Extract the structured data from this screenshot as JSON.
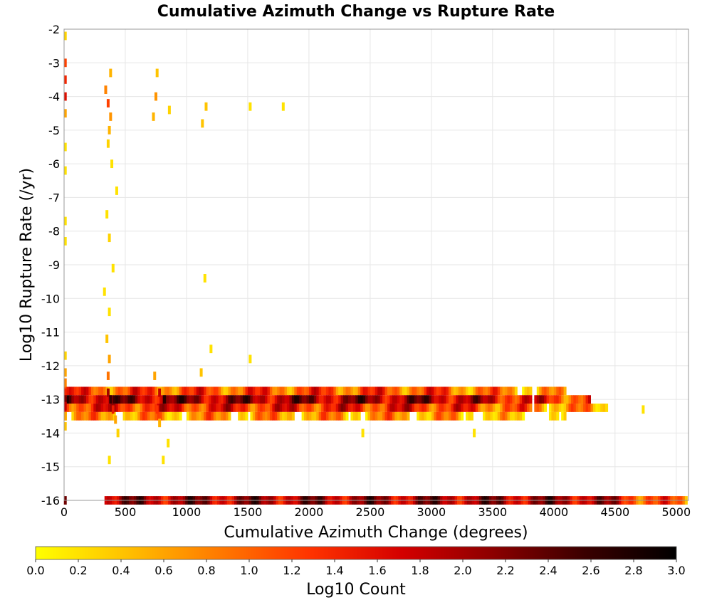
{
  "chart_data": {
    "type": "heatmap",
    "title": "Cumulative Azimuth Change vs Rupture Rate",
    "xlabel": "Cumulative Azimuth Change (degrees)",
    "ylabel": "Log10 Rupture Rate (/yr)",
    "xlim": [
      0,
      5100
    ],
    "ylim": [
      -16,
      -2
    ],
    "xticks": [
      "0",
      "500",
      "1000",
      "1500",
      "2000",
      "2500",
      "3000",
      "3500",
      "4000",
      "4500",
      "5000"
    ],
    "yticks": [
      "-2",
      "-3",
      "-4",
      "-5",
      "-6",
      "-7",
      "-8",
      "-9",
      "-10",
      "-11",
      "-12",
      "-13",
      "-14",
      "-15",
      "-16"
    ],
    "grid": true,
    "colorscale": {
      "label": "Log10 Count",
      "range": [
        0,
        3
      ],
      "ticks": [
        "0.0",
        "0.2",
        "0.4",
        "0.6",
        "0.8",
        "1.0",
        "1.2",
        "1.4",
        "1.6",
        "1.8",
        "2.0",
        "2.2",
        "2.4",
        "2.6",
        "2.8",
        "3.0"
      ],
      "colors": [
        "#ffff00",
        "#ffc000",
        "#ff7a00",
        "#ff3300",
        "#d40000",
        "#8c0000",
        "#3a0000",
        "#000000"
      ]
    },
    "cells": [
      {
        "x": 10,
        "y": -2.2,
        "v": 0.3
      },
      {
        "x": 10,
        "y": -3.0,
        "v": 1.2
      },
      {
        "x": 10,
        "y": -3.5,
        "v": 1.4
      },
      {
        "x": 10,
        "y": -4.0,
        "v": 1.6
      },
      {
        "x": 10,
        "y": -4.5,
        "v": 0.6
      },
      {
        "x": 10,
        "y": -5.5,
        "v": 0.2
      },
      {
        "x": 10,
        "y": -6.2,
        "v": 0.2
      },
      {
        "x": 10,
        "y": -7.7,
        "v": 0.2
      },
      {
        "x": 10,
        "y": -8.3,
        "v": 0.2
      },
      {
        "x": 10,
        "y": -11.7,
        "v": 0.3
      },
      {
        "x": 10,
        "y": -12.2,
        "v": 0.6
      },
      {
        "x": 10,
        "y": -12.5,
        "v": 0.8
      },
      {
        "x": 10,
        "y": -12.8,
        "v": 1.4
      },
      {
        "x": 10,
        "y": -13.0,
        "v": 2.2
      },
      {
        "x": 10,
        "y": -13.2,
        "v": 1.8
      },
      {
        "x": 10,
        "y": -13.5,
        "v": 0.6
      },
      {
        "x": 10,
        "y": -13.8,
        "v": 0.4
      },
      {
        "x": 10,
        "y": -16.0,
        "v": 2.3
      },
      {
        "x": 340,
        "y": -3.8,
        "v": 0.8
      },
      {
        "x": 360,
        "y": -4.2,
        "v": 1.2
      },
      {
        "x": 380,
        "y": -3.3,
        "v": 0.5
      },
      {
        "x": 380,
        "y": -4.6,
        "v": 0.7
      },
      {
        "x": 370,
        "y": -5.0,
        "v": 0.5
      },
      {
        "x": 360,
        "y": -5.4,
        "v": 0.3
      },
      {
        "x": 390,
        "y": -6.0,
        "v": 0.2
      },
      {
        "x": 430,
        "y": -6.8,
        "v": 0.2
      },
      {
        "x": 350,
        "y": -7.5,
        "v": 0.2
      },
      {
        "x": 370,
        "y": -8.2,
        "v": 0.3
      },
      {
        "x": 400,
        "y": -9.1,
        "v": 0.2
      },
      {
        "x": 330,
        "y": -9.8,
        "v": 0.2
      },
      {
        "x": 370,
        "y": -10.4,
        "v": 0.2
      },
      {
        "x": 350,
        "y": -11.2,
        "v": 0.4
      },
      {
        "x": 370,
        "y": -11.8,
        "v": 0.6
      },
      {
        "x": 360,
        "y": -12.3,
        "v": 0.9
      },
      {
        "x": 360,
        "y": -12.8,
        "v": 2.0
      },
      {
        "x": 380,
        "y": -13.0,
        "v": 2.6
      },
      {
        "x": 400,
        "y": -13.3,
        "v": 1.5
      },
      {
        "x": 420,
        "y": -13.6,
        "v": 0.6
      },
      {
        "x": 440,
        "y": -14.0,
        "v": 0.3
      },
      {
        "x": 370,
        "y": -14.8,
        "v": 0.2
      },
      {
        "x": 760,
        "y": -3.3,
        "v": 0.4
      },
      {
        "x": 750,
        "y": -4.0,
        "v": 0.7
      },
      {
        "x": 730,
        "y": -4.6,
        "v": 0.5
      },
      {
        "x": 860,
        "y": -4.4,
        "v": 0.3
      },
      {
        "x": 740,
        "y": -12.3,
        "v": 0.6
      },
      {
        "x": 780,
        "y": -12.8,
        "v": 1.8
      },
      {
        "x": 820,
        "y": -13.0,
        "v": 2.7
      },
      {
        "x": 760,
        "y": -13.3,
        "v": 1.3
      },
      {
        "x": 780,
        "y": -13.7,
        "v": 0.5
      },
      {
        "x": 850,
        "y": -14.3,
        "v": 0.2
      },
      {
        "x": 810,
        "y": -14.8,
        "v": 0.2
      },
      {
        "x": 1160,
        "y": -4.3,
        "v": 0.4
      },
      {
        "x": 1130,
        "y": -4.8,
        "v": 0.4
      },
      {
        "x": 1150,
        "y": -9.4,
        "v": 0.2
      },
      {
        "x": 1200,
        "y": -11.5,
        "v": 0.2
      },
      {
        "x": 1120,
        "y": -12.2,
        "v": 0.4
      },
      {
        "x": 1520,
        "y": -4.3,
        "v": 0.2
      },
      {
        "x": 1790,
        "y": -4.3,
        "v": 0.2
      },
      {
        "x": 1520,
        "y": -11.8,
        "v": 0.2
      },
      {
        "x": 2440,
        "y": -14.0,
        "v": 0.2
      },
      {
        "x": 3350,
        "y": -14.0,
        "v": 0.2
      },
      {
        "x": 4730,
        "y": -13.3,
        "v": 0.2
      }
    ],
    "bands": [
      {
        "y": -12.75,
        "x_start": 0,
        "x_end": 4100,
        "v": 1.1
      },
      {
        "y": -13.0,
        "x_start": 0,
        "x_end": 4300,
        "v": 2.0
      },
      {
        "y": -13.25,
        "x_start": 0,
        "x_end": 4500,
        "v": 1.4
      },
      {
        "y": -13.5,
        "x_start": 0,
        "x_end": 4100,
        "v": 0.6
      },
      {
        "y": -16.0,
        "x_start": 330,
        "x_end": 5100,
        "v": 2.0
      }
    ]
  }
}
